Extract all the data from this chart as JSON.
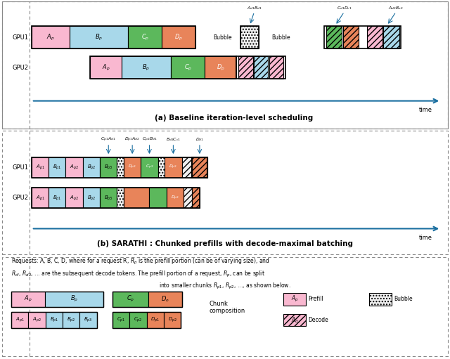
{
  "fig_width": 6.4,
  "fig_height": 5.11,
  "bg_color": "#ffffff",
  "colors": {
    "pink": "#f9b8d0",
    "light_blue": "#a8d8ea",
    "green": "#5cb85c",
    "orange": "#e8845a",
    "arrow": "#1a6fa0",
    "border_dark": "#222222",
    "gray": "#888888"
  },
  "section_a_title": "(a) Baseline iteration-level scheduling",
  "section_b_title": "(b) SARATHI : Chunked prefills with decode-maximal batching",
  "time_label": "time"
}
